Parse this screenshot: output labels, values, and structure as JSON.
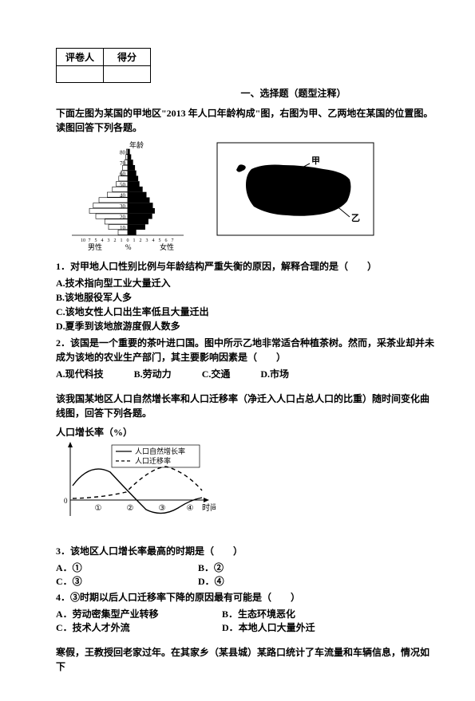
{
  "score_table": {
    "col1": "评卷人",
    "col2": "得分"
  },
  "section_title": "一、选择题（题型注释）",
  "intro1": "下面左图为某国的甲地区\"2013 年人口年龄构成\"图，右图为甲、乙两地在某国的位置图。读图回答下列各题。",
  "pyramid": {
    "yaxis_label": "年龄",
    "y_ticks": [
      "10",
      "20",
      "30",
      "40",
      "50",
      "60",
      "70",
      "80"
    ],
    "x_ticks_left": [
      "-10",
      "-7",
      "-5",
      "-4",
      "-3",
      "-2",
      "-1"
    ],
    "x_center": "0",
    "x_ticks_right": [
      "1",
      "2",
      "3",
      "4",
      "5",
      "6",
      "7"
    ],
    "left_label": "男性",
    "center_label": "%",
    "right_label": "女性",
    "bar_values_left": [
      1.5,
      3,
      3.6,
      5,
      6,
      5.4,
      4.5,
      3.2,
      2.4,
      1.8,
      1.4,
      1,
      0.8,
      0.5,
      0.3,
      0.2
    ],
    "bar_values_right": [
      1.3,
      2.7,
      3.2,
      3.8,
      4.2,
      3.9,
      3.4,
      2.9,
      2.3,
      1.8,
      1.6,
      1.3,
      1.1,
      0.8,
      0.5,
      0.3
    ],
    "colors": {
      "left_fill": "#ffffff",
      "right_fill": "#000000",
      "stroke": "#000000"
    }
  },
  "map": {
    "label_top": "甲",
    "label_bottom": "乙"
  },
  "q1": "1．对甲地人口性别比例与年龄结构严重失衡的原因，解释合理的是（　　）",
  "q1_opts": [
    "A.技术指向型工业大量迁入",
    "B.该地服役军人多",
    "C.该地女性人口出生率低且大量迁出",
    "D.夏季到该地旅游度假人数多"
  ],
  "q2": "2．该国是一个重要的茶叶进口国。图中所示乙地非常适合种植茶树。然而，采茶业却并未成为该地的农业生产部门，其主要影响因素是（　　）",
  "q2_opts": {
    "a": "A.现代科技",
    "b": "B.劳动力",
    "c": "C.交通",
    "d": "D.市场"
  },
  "intro2": "该我国某地区人口自然增长率和人口迁移率（净迁入人口占总人口的比重）随时间变化曲线图，回答下列各题。",
  "chart_title": "人口增长率（%）",
  "legend1": "人口自然增长率",
  "legend2": "人口迁移率",
  "growth": {
    "x_ticks": [
      "①",
      "②",
      "③",
      "④"
    ],
    "x_label": "时间",
    "colors": {
      "axis": "#000000",
      "solid": "#000000",
      "dash": "#000000"
    },
    "natural_curve": [
      [
        5,
        34
      ],
      [
        20,
        18
      ],
      [
        40,
        12
      ],
      [
        65,
        45
      ],
      [
        90,
        58
      ],
      [
        120,
        55
      ],
      [
        150,
        48
      ],
      [
        170,
        45
      ]
    ],
    "migration_curve": [
      [
        5,
        58
      ],
      [
        30,
        56
      ],
      [
        60,
        50
      ],
      [
        90,
        35
      ],
      [
        110,
        22
      ],
      [
        130,
        20
      ],
      [
        155,
        35
      ],
      [
        170,
        45
      ]
    ]
  },
  "q3": "3．该地区人口增长率最高的时期是（　　）",
  "q3_opts": {
    "a": "A．①",
    "b": "B．②",
    "c": "C．③",
    "d": "D．④"
  },
  "q4": "4．③时期以后人口迁移率下降的原因最有可能是（　　）",
  "q4_opts": [
    "A．劳动密集型产业转移",
    "B．生态环境恶化",
    "C．技术人才外流",
    "D．本地人口大量外迁"
  ],
  "intro3": "寒假，王教授回老家过年。在其家乡（某县城）某路口统计了车流量和车辆信息，情况如下"
}
